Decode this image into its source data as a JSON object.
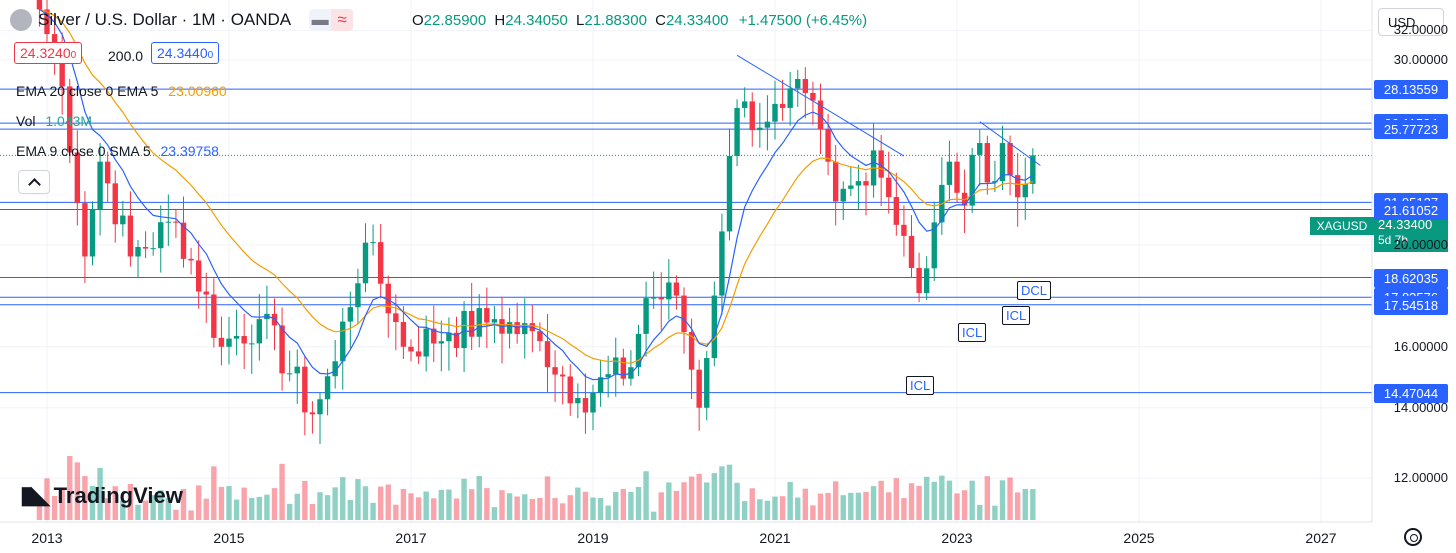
{
  "header": {
    "title": "Silver / U.S. Dollar · 1M · OANDA",
    "ohlc": {
      "o_label": "O",
      "o": "22.85900",
      "h_label": "H",
      "h": "24.34050",
      "l_label": "L",
      "l": "21.88300",
      "c_label": "C",
      "c": "24.33400",
      "change": "+1.47500 (+6.45%)"
    }
  },
  "currency": "USD",
  "trade": {
    "sell": "24.3240",
    "sell_sup": "0",
    "spread": "200.0",
    "buy": "24.3440",
    "buy_sup": "0"
  },
  "indicators": [
    {
      "label": "EMA 20 close 0 EMA 5",
      "value": "23.00960",
      "color": "#f59d00"
    },
    {
      "label": "Vol",
      "value": "1.043M",
      "color": "#26a69a"
    },
    {
      "label": "EMA 9 close 0 SMA 5",
      "value": "23.39758",
      "color": "#2962ff"
    }
  ],
  "symbol_tag": {
    "name": "XAGUSD",
    "price": "24.33400",
    "countdown": "5d 7h"
  },
  "watermark": "TradingView",
  "annotations": [
    "ICL",
    "ICL",
    "ICL",
    "DCL"
  ],
  "chart_data": {
    "type": "candlestick",
    "title": "Silver / U.S. Dollar · 1M · OANDA",
    "y_axis_labels": [
      "32.00000",
      "30.00000",
      "20.00000",
      "16.00000",
      "14.00000",
      "12.00000"
    ],
    "y_ticks": [
      32,
      30,
      20,
      16,
      14,
      12
    ],
    "y_scale": "log",
    "ylim": [
      10.9,
      34.2
    ],
    "x_labels": [
      "2013",
      "2015",
      "2017",
      "2019",
      "2021",
      "2023",
      "2025",
      "2027"
    ],
    "horizontal_levels": [
      28.13559,
      26.11584,
      25.77723,
      21.95127,
      21.61052,
      18.62035,
      17.83576,
      17.54518,
      14.47044
    ],
    "horizontal_level_labels": [
      "28.13559",
      "26.11584",
      "25.77723",
      "21.95127",
      "21.61052",
      "18.62035",
      "17.83576",
      "17.54518",
      "14.47044"
    ],
    "last_price": 24.334,
    "anchors": [
      [
        "2012-12",
        33.5
      ],
      [
        "2013-03",
        28.3
      ],
      [
        "2013-06",
        19.5
      ],
      [
        "2013-08",
        24.0
      ],
      [
        "2013-12",
        19.5
      ],
      [
        "2014-06",
        21.0
      ],
      [
        "2014-12",
        16.0
      ],
      [
        "2015-05",
        17.0
      ],
      [
        "2015-12",
        13.8
      ],
      [
        "2016-03",
        15.5
      ],
      [
        "2016-07",
        20.1
      ],
      [
        "2016-12",
        16.0
      ],
      [
        "2017-06",
        16.5
      ],
      [
        "2017-12",
        17.0
      ],
      [
        "2018-06",
        16.2
      ],
      [
        "2018-11",
        14.3
      ],
      [
        "2019-06",
        15.3
      ],
      [
        "2019-08",
        17.8
      ],
      [
        "2019-12",
        17.9
      ],
      [
        "2020-03",
        14.0
      ],
      [
        "2020-05",
        17.9
      ],
      [
        "2020-07",
        24.3
      ],
      [
        "2020-08",
        27.0
      ],
      [
        "2020-12",
        26.2
      ],
      [
        "2021-02",
        27.0
      ],
      [
        "2021-05",
        27.9
      ],
      [
        "2021-09",
        22.0
      ],
      [
        "2021-12",
        23.0
      ],
      [
        "2022-02",
        24.6
      ],
      [
        "2022-06",
        20.4
      ],
      [
        "2022-08",
        18.0
      ],
      [
        "2022-09",
        19.0
      ],
      [
        "2022-12",
        24.0
      ],
      [
        "2023-02",
        21.8
      ],
      [
        "2023-04",
        25.0
      ],
      [
        "2023-06",
        23.0
      ],
      [
        "2023-07",
        25.0
      ],
      [
        "2023-09",
        22.2
      ],
      [
        "2023-10",
        22.86
      ],
      [
        "2023-11",
        24.334
      ]
    ],
    "trendlines": [
      {
        "from": [
          "2020-08",
          30.3
        ],
        "to": [
          "2022-06",
          24.3
        ]
      },
      {
        "from": [
          "2023-04",
          26.2
        ],
        "to": [
          "2023-12",
          23.8
        ]
      }
    ],
    "series": [
      {
        "name": "EMA 20 close 0 EMA 5",
        "color": "#f59d00"
      },
      {
        "name": "EMA 9 close 0 SMA 5",
        "color": "#2962ff"
      },
      {
        "name": "Vol",
        "color": "#26a69a"
      }
    ]
  }
}
